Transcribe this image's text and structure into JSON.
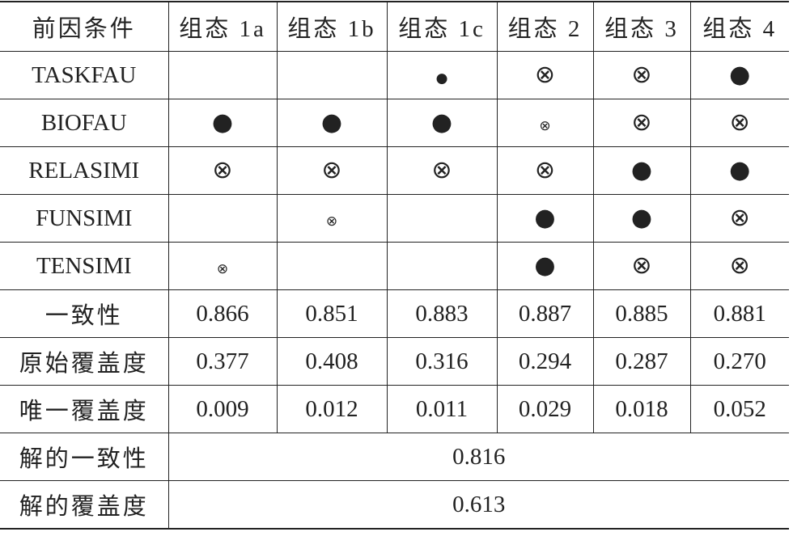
{
  "header": [
    "前因条件",
    "组态 1a",
    "组态 1b",
    "组态 1c",
    "组态 2",
    "组态 3",
    "组态 4"
  ],
  "rows": [
    {
      "label": "TASKFAU",
      "cells": [
        null,
        null,
        {
          "symbol": "●",
          "size": "small"
        },
        {
          "symbol": "⊗",
          "size": "large"
        },
        {
          "symbol": "⊗",
          "size": "large"
        },
        {
          "symbol": "●",
          "size": "large"
        }
      ]
    },
    {
      "label": "BIOFAU",
      "cells": [
        {
          "symbol": "●",
          "size": "large"
        },
        {
          "symbol": "●",
          "size": "large"
        },
        {
          "symbol": "●",
          "size": "large"
        },
        {
          "symbol": "⊗",
          "size": "small"
        },
        {
          "symbol": "⊗",
          "size": "large"
        },
        {
          "symbol": "⊗",
          "size": "large"
        }
      ]
    },
    {
      "label": "RELASIMI",
      "cells": [
        {
          "symbol": "⊗",
          "size": "large"
        },
        {
          "symbol": "⊗",
          "size": "large"
        },
        {
          "symbol": "⊗",
          "size": "large"
        },
        {
          "symbol": "⊗",
          "size": "large"
        },
        {
          "symbol": "●",
          "size": "large"
        },
        {
          "symbol": "●",
          "size": "large"
        }
      ]
    },
    {
      "label": "FUNSIMI",
      "cells": [
        null,
        {
          "symbol": "⊗",
          "size": "small"
        },
        null,
        {
          "symbol": "●",
          "size": "large"
        },
        {
          "symbol": "●",
          "size": "large"
        },
        {
          "symbol": "⊗",
          "size": "large"
        }
      ]
    },
    {
      "label": "TENSIMI",
      "cells": [
        {
          "symbol": "⊗",
          "size": "small"
        },
        null,
        null,
        {
          "symbol": "●",
          "size": "large"
        },
        {
          "symbol": "⊗",
          "size": "large"
        },
        {
          "symbol": "⊗",
          "size": "large"
        }
      ]
    }
  ],
  "stats": [
    {
      "label": "一致性",
      "values": [
        "0.866",
        "0.851",
        "0.883",
        "0.887",
        "0.885",
        "0.881"
      ]
    },
    {
      "label": "原始覆盖度",
      "values": [
        "0.377",
        "0.408",
        "0.316",
        "0.294",
        "0.287",
        "0.270"
      ]
    },
    {
      "label": "唯一覆盖度",
      "values": [
        "0.009",
        "0.012",
        "0.011",
        "0.029",
        "0.018",
        "0.052"
      ]
    }
  ],
  "solution": [
    {
      "label": "解的一致性",
      "value": "0.816"
    },
    {
      "label": "解的覆盖度",
      "value": "0.613"
    }
  ]
}
